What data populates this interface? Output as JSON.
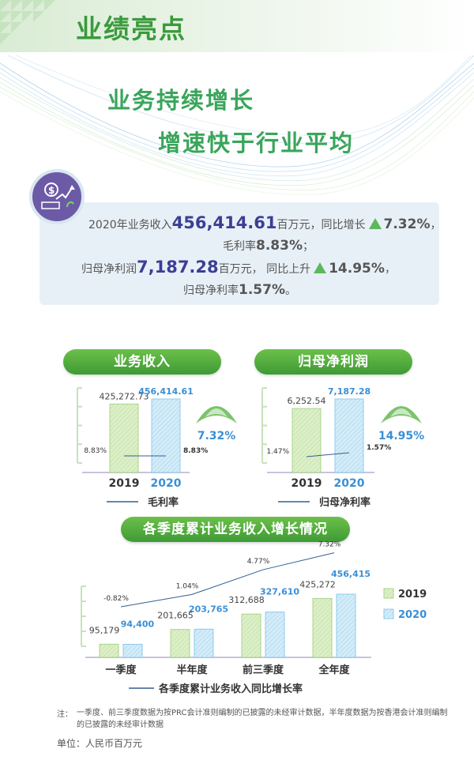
{
  "header": {
    "title": "业绩亮点"
  },
  "hero": {
    "slogan_1": "业务持续增长",
    "slogan_2": "增速快于行业平均"
  },
  "summary": {
    "l1_pre": "2020年业务收入",
    "revenue": "456,414.61",
    "l1_mid": "百万元，同比增长",
    "revenue_growth": "7.32%",
    "l1_post": "，",
    "l2_pre": "毛利率",
    "gross_margin": "8.83%",
    "l2_post": "；",
    "l3_pre": "归母净利润",
    "net_profit": "7,187.28",
    "l3_mid": "百万元， 同比上升",
    "profit_growth": "14.95%",
    "l3_post": "，",
    "l4_pre": "归母净利率",
    "net_margin": "1.57%",
    "l4_post": "。"
  },
  "colors": {
    "green": "#5cb85c",
    "pale_green": "#dcefc8",
    "pale_blue": "#cfe8f7",
    "blue_text": "#3a8fd6",
    "navy": "#3b3f93",
    "line": "#335f93"
  },
  "chart_data": [
    {
      "type": "bar",
      "title": "业务收入",
      "categories": [
        "2019",
        "2020"
      ],
      "values": [
        425272.73,
        456414.61
      ],
      "value_labels": [
        "425,272.73",
        "456,414.61"
      ],
      "line_series": {
        "name": "毛利率",
        "values": [
          8.83,
          8.83
        ],
        "labels": [
          "8.83%",
          "8.83%"
        ]
      },
      "growth_label": "7.32%"
    },
    {
      "type": "bar",
      "title": "归母净利润",
      "categories": [
        "2019",
        "2020"
      ],
      "values": [
        6252.54,
        7187.28
      ],
      "value_labels": [
        "6,252.54",
        "7,187.28"
      ],
      "line_series": {
        "name": "归母净利率",
        "values": [
          1.47,
          1.57
        ],
        "labels": [
          "1.47%",
          "1.57%"
        ]
      },
      "growth_label": "14.95%"
    },
    {
      "type": "bar",
      "title": "各季度累计业务收入增长情况",
      "categories": [
        "一季度",
        "半年度",
        "前三季度",
        "全年度"
      ],
      "series": [
        {
          "name": "2019",
          "values": [
            95179,
            201665,
            312688,
            425272
          ],
          "labels": [
            "95,179",
            "201,665",
            "312,688",
            "425,272"
          ]
        },
        {
          "name": "2020",
          "values": [
            94400,
            203765,
            327610,
            456415
          ],
          "labels": [
            "94,400",
            "203,765",
            "327,610",
            "456,415"
          ]
        }
      ],
      "line_series": {
        "name": "各季度累计业务收入同比增长率",
        "values": [
          -0.82,
          1.04,
          4.77,
          7.32
        ],
        "labels": [
          "-0.82%",
          "1.04%",
          "4.77%",
          "7.32%"
        ]
      },
      "legend_position": "right"
    }
  ],
  "footer": {
    "note_label": "注：",
    "note_text": "一季度、前三季度数据为按PRC会计准则编制的已披露的未经审计数据，半年度数据为按香港会计准则编制的已披露的未经审计数据",
    "unit": "单位：人民币百万元"
  }
}
